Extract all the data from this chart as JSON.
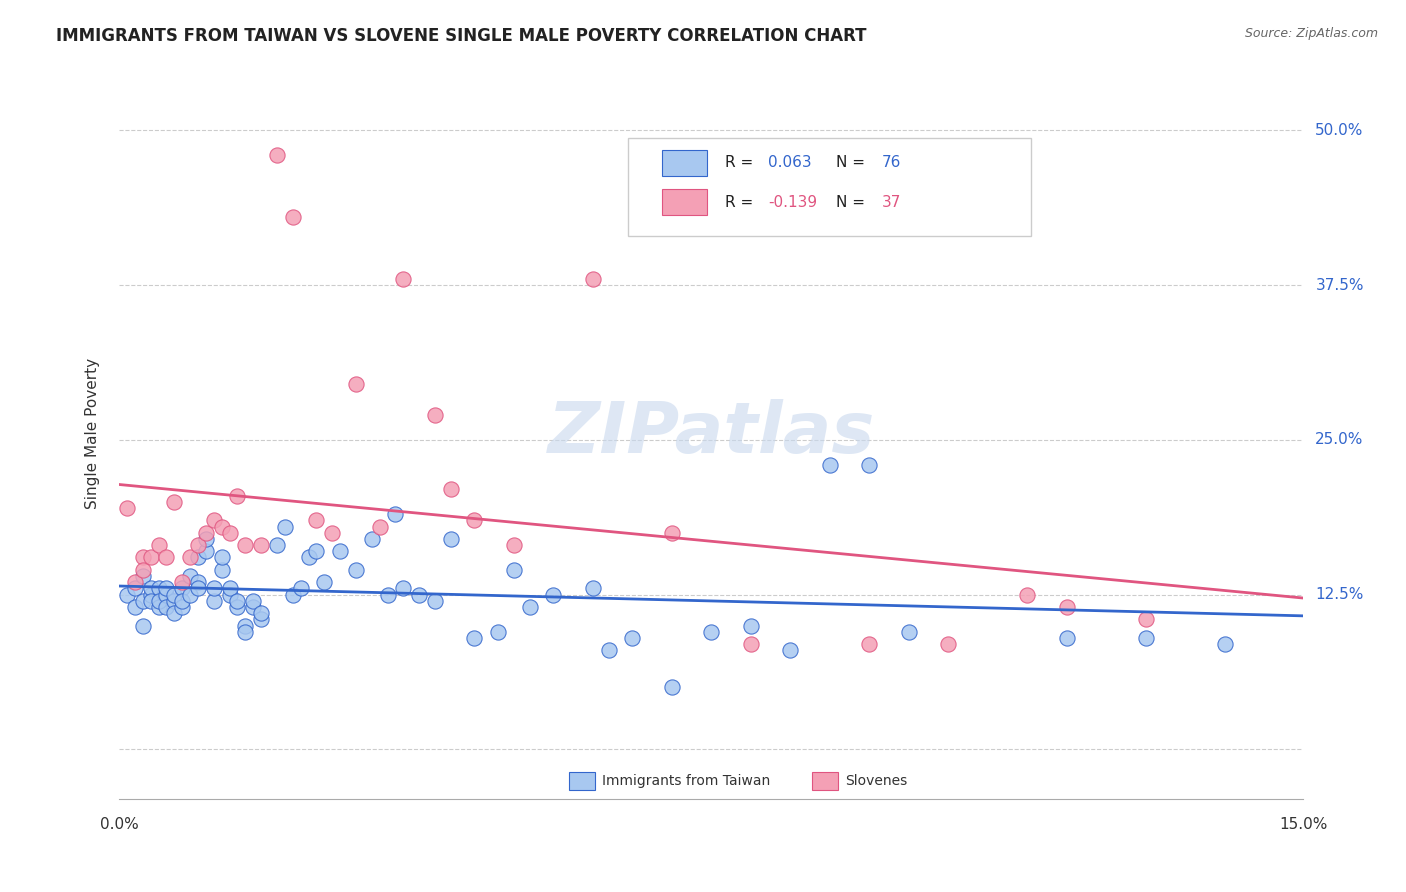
{
  "title": "IMMIGRANTS FROM TAIWAN VS SLOVENE SINGLE MALE POVERTY CORRELATION CHART",
  "source": "Source: ZipAtlas.com",
  "ylabel": "Single Male Poverty",
  "yticks": [
    0.0,
    0.125,
    0.25,
    0.375,
    0.5
  ],
  "ytick_labels": [
    "",
    "12.5%",
    "25.0%",
    "37.5%",
    "50.0%"
  ],
  "xmin": 0.0,
  "xmax": 0.15,
  "ymin": -0.04,
  "ymax": 0.55,
  "legend_bottom_blue": "Immigrants from Taiwan",
  "legend_bottom_pink": "Slovenes",
  "blue_fill": "#A8C8F0",
  "pink_fill": "#F4A0B5",
  "line_blue": "#3366CC",
  "line_pink": "#E05580",
  "watermark": "ZIPatlas",
  "taiwan_x": [
    0.001,
    0.002,
    0.002,
    0.003,
    0.003,
    0.003,
    0.004,
    0.004,
    0.004,
    0.005,
    0.005,
    0.005,
    0.006,
    0.006,
    0.006,
    0.007,
    0.007,
    0.007,
    0.008,
    0.008,
    0.008,
    0.009,
    0.009,
    0.01,
    0.01,
    0.01,
    0.011,
    0.011,
    0.012,
    0.012,
    0.013,
    0.013,
    0.014,
    0.014,
    0.015,
    0.015,
    0.016,
    0.016,
    0.017,
    0.017,
    0.018,
    0.018,
    0.02,
    0.021,
    0.022,
    0.023,
    0.024,
    0.025,
    0.026,
    0.028,
    0.03,
    0.032,
    0.034,
    0.035,
    0.036,
    0.038,
    0.04,
    0.042,
    0.045,
    0.048,
    0.05,
    0.052,
    0.055,
    0.06,
    0.062,
    0.065,
    0.07,
    0.075,
    0.08,
    0.085,
    0.09,
    0.095,
    0.1,
    0.12,
    0.13,
    0.14
  ],
  "taiwan_y": [
    0.125,
    0.13,
    0.115,
    0.12,
    0.1,
    0.14,
    0.125,
    0.13,
    0.12,
    0.115,
    0.13,
    0.12,
    0.125,
    0.115,
    0.13,
    0.12,
    0.125,
    0.11,
    0.115,
    0.13,
    0.12,
    0.14,
    0.125,
    0.135,
    0.13,
    0.155,
    0.16,
    0.17,
    0.12,
    0.13,
    0.145,
    0.155,
    0.125,
    0.13,
    0.115,
    0.12,
    0.1,
    0.095,
    0.115,
    0.12,
    0.105,
    0.11,
    0.165,
    0.18,
    0.125,
    0.13,
    0.155,
    0.16,
    0.135,
    0.16,
    0.145,
    0.17,
    0.125,
    0.19,
    0.13,
    0.125,
    0.12,
    0.17,
    0.09,
    0.095,
    0.145,
    0.115,
    0.125,
    0.13,
    0.08,
    0.09,
    0.05,
    0.095,
    0.1,
    0.08,
    0.23,
    0.23,
    0.095,
    0.09,
    0.09,
    0.085
  ],
  "slovene_x": [
    0.001,
    0.002,
    0.003,
    0.003,
    0.004,
    0.005,
    0.006,
    0.007,
    0.008,
    0.009,
    0.01,
    0.011,
    0.012,
    0.013,
    0.014,
    0.015,
    0.016,
    0.018,
    0.02,
    0.022,
    0.025,
    0.027,
    0.03,
    0.033,
    0.036,
    0.04,
    0.042,
    0.045,
    0.05,
    0.06,
    0.07,
    0.08,
    0.095,
    0.105,
    0.115,
    0.12,
    0.13
  ],
  "slovene_y": [
    0.195,
    0.135,
    0.155,
    0.145,
    0.155,
    0.165,
    0.155,
    0.2,
    0.135,
    0.155,
    0.165,
    0.175,
    0.185,
    0.18,
    0.175,
    0.205,
    0.165,
    0.165,
    0.48,
    0.43,
    0.185,
    0.175,
    0.295,
    0.18,
    0.38,
    0.27,
    0.21,
    0.185,
    0.165,
    0.38,
    0.175,
    0.085,
    0.085,
    0.085,
    0.125,
    0.115,
    0.105
  ]
}
